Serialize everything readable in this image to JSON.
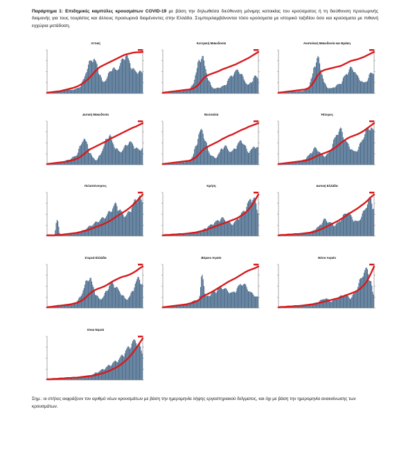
{
  "caption": {
    "title": "Παράρτημα 1: Επιδημικές καμπύλες κρουσμάτων COVID-19",
    "text": " με βάση την δηλωθείσα διεύθυνση μόνιμης κατοικίας του κρούσματος ή τη διεύθυνση προσωρινής διαμονής για τους τουρίστες και άλλους προσωρινά διαμένοντες στην Ελλάδα. Συμπεριλαμβάνονται τόσο κρούσματα με ιστορικό ταξιδίου όσο και κρούσματα με πιθανή εγχώρια μετάδοση."
  },
  "chart_data": [
    {
      "type": "bar",
      "title": "Αττική",
      "values": [
        1,
        2,
        3,
        5,
        7,
        9,
        11,
        8,
        10,
        12,
        17,
        32,
        58,
        77,
        88,
        72,
        48,
        26,
        36,
        51,
        65,
        54,
        68,
        82,
        97,
        78,
        62,
        52,
        55,
        49
      ],
      "cumulative": [
        0,
        1,
        2,
        3,
        4,
        6,
        8,
        10,
        12,
        15,
        19,
        24,
        30,
        38,
        47,
        56,
        63,
        67,
        71,
        75,
        79,
        83,
        87,
        91,
        94,
        96,
        98,
        99,
        99,
        100
      ]
    },
    {
      "type": "bar",
      "title": "Κεντρική Μακεδονία",
      "values": [
        1,
        1,
        2,
        3,
        4,
        5,
        6,
        7,
        9,
        20,
        48,
        82,
        92,
        60,
        30,
        15,
        12,
        14,
        17,
        20,
        35,
        44,
        52,
        58,
        46,
        31,
        20,
        28,
        42,
        38
      ],
      "cumulative": [
        0,
        1,
        2,
        3,
        4,
        5,
        6,
        7,
        8,
        10,
        14,
        21,
        32,
        40,
        44,
        47,
        50,
        53,
        57,
        60,
        63,
        66,
        69,
        73,
        77,
        81,
        85,
        90,
        95,
        100
      ]
    },
    {
      "type": "bar",
      "title": "Ανατολική Μακεδονία και Θράκη",
      "values": [
        1,
        1,
        2,
        3,
        4,
        5,
        5,
        6,
        7,
        14,
        35,
        72,
        88,
        55,
        24,
        14,
        12,
        16,
        21,
        25,
        40,
        52,
        62,
        58,
        42,
        33,
        25,
        32,
        48,
        53
      ],
      "cumulative": [
        0,
        1,
        2,
        3,
        4,
        5,
        6,
        7,
        8,
        11,
        18,
        30,
        44,
        52,
        56,
        58,
        60,
        62,
        64,
        66,
        70,
        74,
        78,
        80,
        82,
        85,
        88,
        92,
        96,
        100
      ]
    },
    {
      "type": "bar",
      "title": "Δυτική Μακεδονία",
      "values": [
        1,
        2,
        3,
        4,
        5,
        8,
        11,
        14,
        19,
        25,
        44,
        66,
        53,
        30,
        16,
        11,
        22,
        41,
        61,
        76,
        51,
        41,
        31,
        36,
        47,
        56,
        51,
        41,
        36,
        41
      ],
      "cumulative": [
        0,
        1,
        2,
        3,
        4,
        5,
        6,
        8,
        10,
        13,
        17,
        23,
        30,
        36,
        40,
        44,
        48,
        52,
        56,
        61,
        65,
        69,
        73,
        77,
        81,
        85,
        89,
        92,
        96,
        100
      ]
    },
    {
      "type": "bar",
      "title": "Θεσσαλία",
      "values": [
        1,
        1,
        2,
        3,
        4,
        5,
        6,
        7,
        9,
        19,
        46,
        76,
        86,
        56,
        31,
        21,
        16,
        26,
        41,
        46,
        36,
        31,
        41,
        51,
        61,
        46,
        31,
        36,
        46,
        41
      ],
      "cumulative": [
        0,
        1,
        2,
        3,
        4,
        5,
        6,
        7,
        8,
        11,
        16,
        24,
        33,
        40,
        44,
        48,
        52,
        56,
        61,
        65,
        69,
        72,
        76,
        80,
        84,
        87,
        91,
        94,
        97,
        100
      ]
    },
    {
      "type": "bar",
      "title": "Ήπειρος",
      "values": [
        1,
        2,
        3,
        4,
        5,
        6,
        8,
        10,
        14,
        21,
        31,
        41,
        36,
        26,
        21,
        26,
        41,
        61,
        81,
        86,
        66,
        51,
        41,
        31,
        36,
        51,
        71,
        86,
        94,
        80
      ],
      "cumulative": [
        0,
        1,
        2,
        3,
        4,
        5,
        6,
        7,
        8,
        10,
        13,
        17,
        21,
        24,
        27,
        30,
        34,
        39,
        45,
        52,
        58,
        63,
        67,
        70,
        73,
        77,
        82,
        88,
        94,
        100
      ]
    },
    {
      "type": "bar",
      "title": "Πελοπόννησος",
      "values": [
        1,
        1,
        1,
        40,
        1,
        2,
        3,
        4,
        5,
        7,
        10,
        14,
        19,
        24,
        29,
        34,
        39,
        44,
        49,
        59,
        69,
        79,
        64,
        54,
        49,
        59,
        74,
        88,
        96,
        82
      ],
      "cumulative": [
        0,
        0,
        0,
        1,
        1,
        2,
        3,
        4,
        5,
        6,
        8,
        10,
        12,
        15,
        18,
        21,
        24,
        27,
        31,
        35,
        40,
        46,
        51,
        56,
        61,
        67,
        74,
        82,
        91,
        100
      ]
    },
    {
      "type": "bar",
      "title": "Κρήτη",
      "values": [
        1,
        1,
        2,
        2,
        3,
        3,
        4,
        4,
        5,
        6,
        8,
        10,
        14,
        19,
        24,
        29,
        34,
        39,
        44,
        39,
        34,
        29,
        34,
        44,
        54,
        64,
        79,
        94,
        90,
        60
      ],
      "cumulative": [
        0,
        1,
        1,
        2,
        2,
        3,
        3,
        4,
        5,
        6,
        7,
        9,
        11,
        13,
        16,
        19,
        22,
        25,
        28,
        31,
        34,
        37,
        40,
        44,
        49,
        55,
        63,
        73,
        86,
        100
      ]
    },
    {
      "type": "bar",
      "title": "Δυτική Ελλάδα",
      "values": [
        1,
        1,
        2,
        2,
        3,
        3,
        4,
        5,
        6,
        8,
        11,
        16,
        21,
        31,
        41,
        36,
        31,
        26,
        31,
        41,
        51,
        61,
        49,
        39,
        34,
        44,
        59,
        79,
        92,
        70
      ],
      "cumulative": [
        0,
        1,
        1,
        2,
        2,
        3,
        3,
        4,
        5,
        6,
        7,
        9,
        12,
        15,
        19,
        23,
        27,
        31,
        35,
        40,
        45,
        51,
        56,
        61,
        66,
        72,
        78,
        85,
        93,
        100
      ]
    },
    {
      "type": "bar",
      "title": "Στερεά Ελλάδα",
      "values": [
        1,
        2,
        3,
        8,
        4,
        5,
        7,
        9,
        11,
        16,
        26,
        46,
        66,
        76,
        51,
        31,
        21,
        26,
        41,
        56,
        61,
        51,
        41,
        31,
        21,
        26,
        41,
        61,
        76,
        56
      ],
      "cumulative": [
        0,
        1,
        2,
        3,
        4,
        5,
        6,
        7,
        9,
        11,
        14,
        19,
        26,
        34,
        40,
        44,
        47,
        50,
        54,
        59,
        64,
        68,
        72,
        75,
        77,
        80,
        84,
        89,
        95,
        100
      ]
    },
    {
      "type": "bar",
      "title": "Βόρειο Αιγαίο",
      "values": [
        1,
        2,
        3,
        4,
        5,
        6,
        8,
        10,
        12,
        16,
        19,
        21,
        89,
        26,
        31,
        36,
        41,
        46,
        51,
        46,
        41,
        36,
        41,
        51,
        61,
        56,
        46,
        36,
        31,
        26
      ],
      "cumulative": [
        0,
        1,
        2,
        3,
        4,
        5,
        6,
        7,
        9,
        11,
        14,
        18,
        26,
        30,
        34,
        38,
        43,
        48,
        53,
        58,
        63,
        67,
        71,
        76,
        81,
        86,
        90,
        93,
        96,
        100
      ]
    },
    {
      "type": "bar",
      "title": "Νότιο Αιγαίο",
      "values": [
        1,
        1,
        2,
        2,
        3,
        3,
        4,
        5,
        6,
        7,
        9,
        12,
        15,
        19,
        24,
        21,
        16,
        19,
        24,
        29,
        34,
        29,
        24,
        34,
        49,
        69,
        89,
        94,
        70,
        30
      ],
      "cumulative": [
        0,
        1,
        1,
        2,
        2,
        3,
        3,
        4,
        5,
        6,
        7,
        8,
        10,
        12,
        14,
        16,
        18,
        20,
        22,
        25,
        28,
        31,
        34,
        37,
        41,
        47,
        55,
        66,
        82,
        100
      ]
    },
    {
      "type": "bar",
      "title": "Ιόνια Νησιά",
      "values": [
        1,
        1,
        1,
        2,
        2,
        3,
        3,
        4,
        4,
        5,
        6,
        7,
        9,
        11,
        14,
        18,
        22,
        26,
        31,
        36,
        41,
        46,
        51,
        61,
        71,
        81,
        91,
        96,
        86,
        66
      ],
      "cumulative": [
        0,
        0,
        1,
        1,
        2,
        2,
        3,
        3,
        4,
        4,
        5,
        6,
        7,
        8,
        9,
        11,
        13,
        15,
        18,
        21,
        25,
        29,
        34,
        40,
        47,
        55,
        65,
        76,
        88,
        100
      ]
    }
  ],
  "note": "Σημ.: οι στήλες εκφράζουν τον αριθμό νέων κρουσμάτων με βάση την ημερομηνία λήψης εργαστηριακού δείγματος, και όχι με βάση την ημερομηνία ανακοίνωσης των κρουσμάτων."
}
